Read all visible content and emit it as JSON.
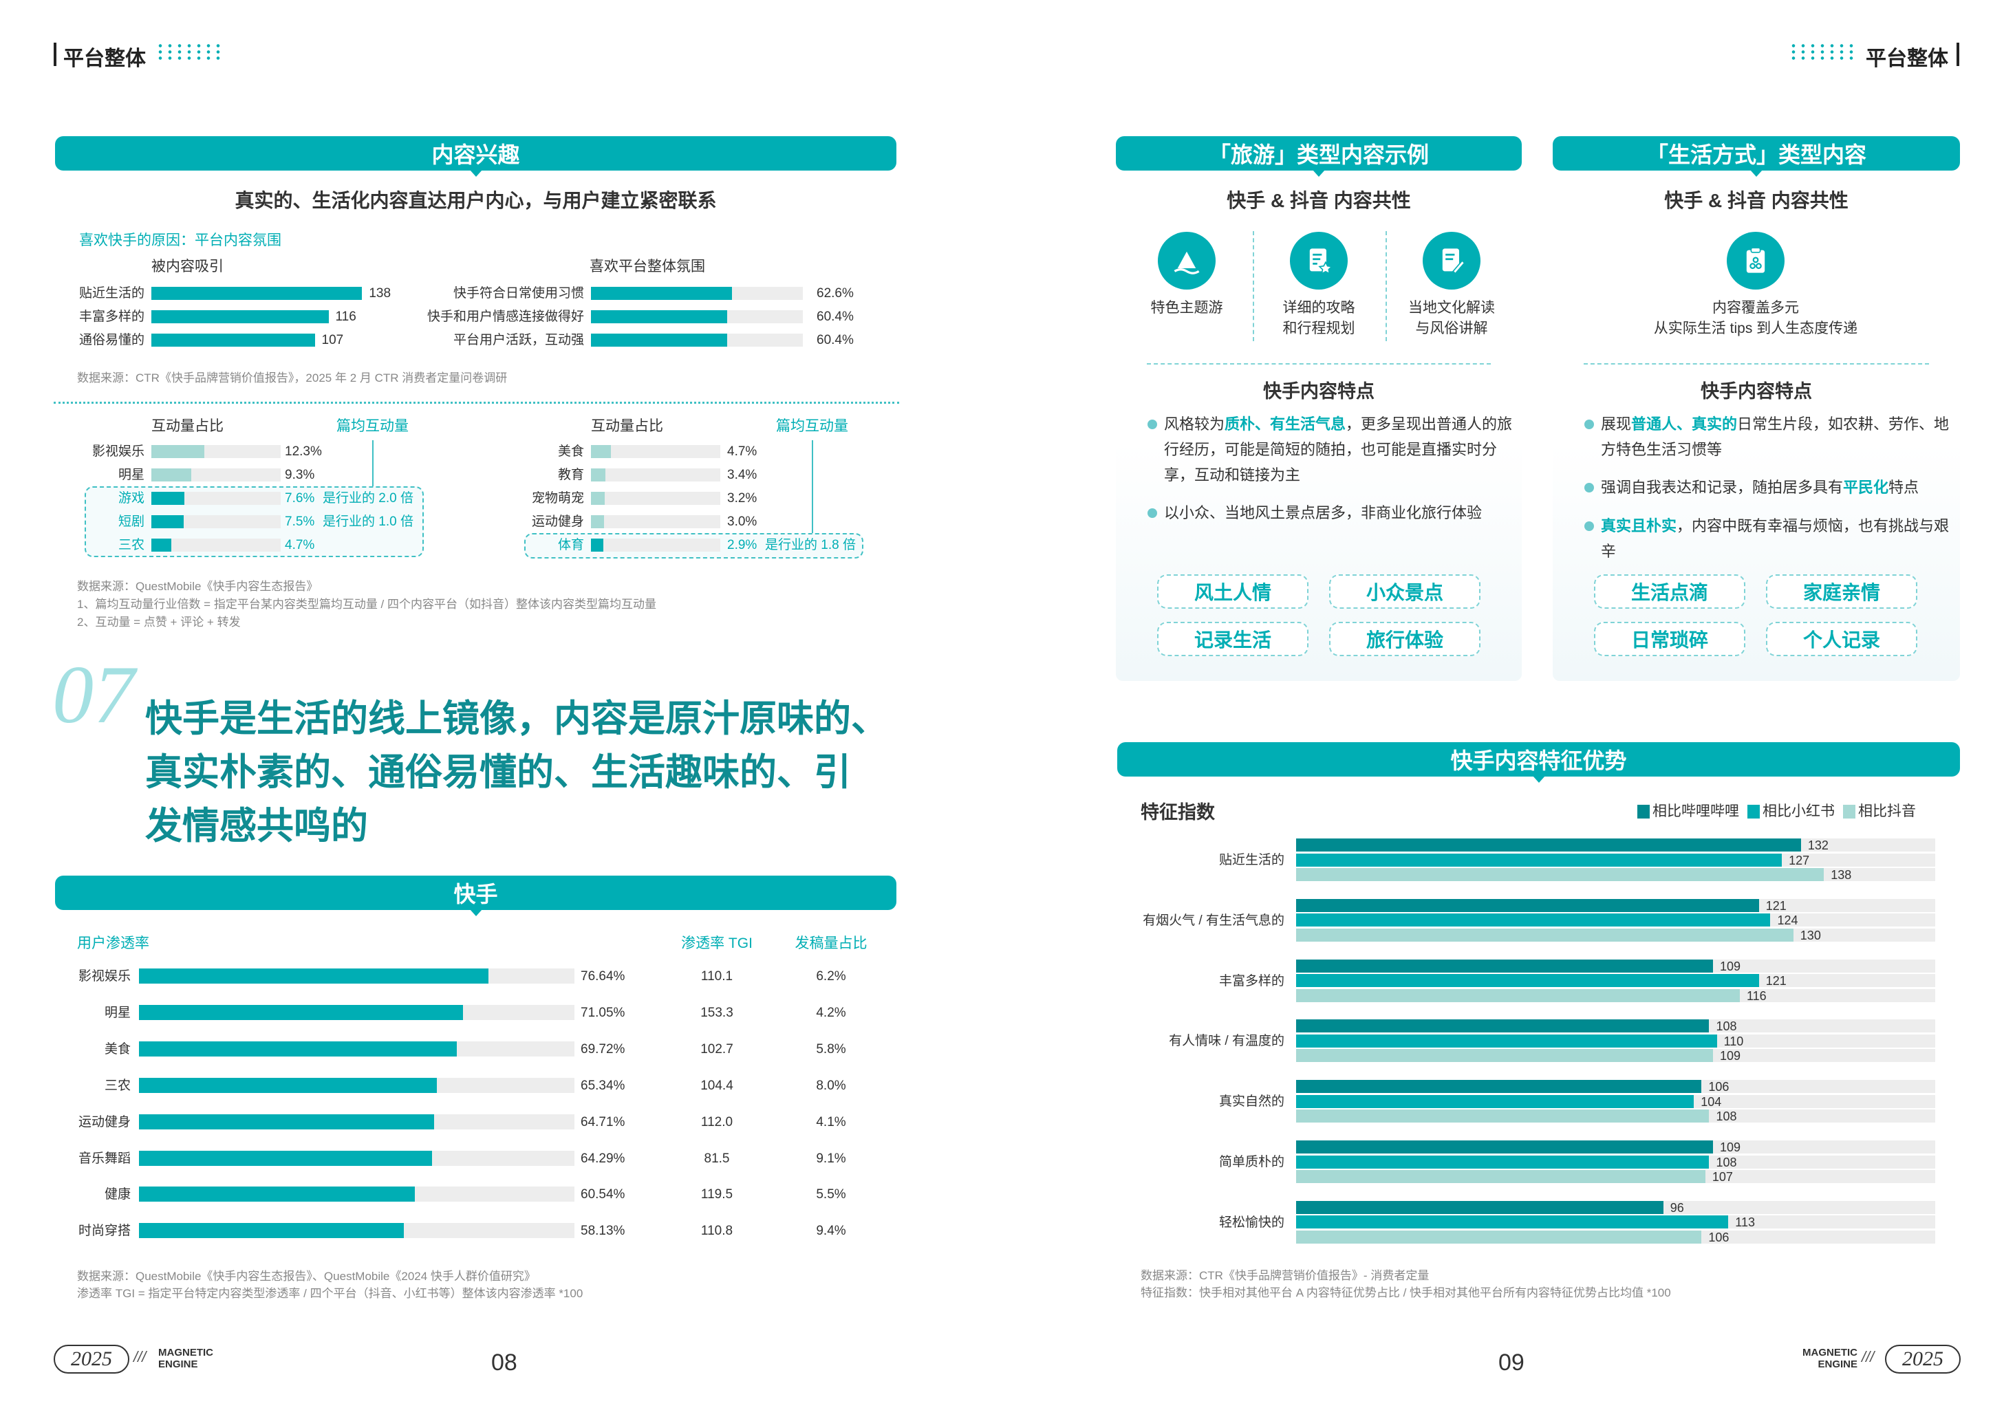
{
  "header": {
    "left": "平台整体",
    "right": "平台整体"
  },
  "left": {
    "banner1": "内容兴趣",
    "subtitle": "真实的、生活化内容直达用户内心，与用户建立紧密联系",
    "reason_title": "喜欢快手的原因：平台内容氛围",
    "attract": {
      "title": "被内容吸引",
      "items": [
        {
          "label": "贴近生活的",
          "value": 138
        },
        {
          "label": "丰富多样的",
          "value": 116
        },
        {
          "label": "通俗易懂的",
          "value": 107
        }
      ]
    },
    "atmosphere": {
      "title": "喜欢平台整体氛围",
      "items": [
        {
          "label": "快手符合日常使用习惯",
          "value": "62.6%",
          "pct": 62.6
        },
        {
          "label": "快手和用户情感连接做得好",
          "value": "60.4%",
          "pct": 60.4
        },
        {
          "label": "平台用户活跃，互动强",
          "value": "60.4%",
          "pct": 60.4
        }
      ]
    },
    "source1": "数据来源：CTR《快手品牌营销价值报告》，2025 年 2 月 CTR 消费者定量问卷调研",
    "interact_left": {
      "title": "互动量占比",
      "avg_title": "篇均互动量",
      "items": [
        {
          "label": "影视娱乐",
          "value": "12.3%",
          "pct": 12.3,
          "highlight": false,
          "multiple": ""
        },
        {
          "label": "明星",
          "value": "9.3%",
          "pct": 9.3,
          "highlight": false,
          "multiple": ""
        },
        {
          "label": "游戏",
          "value": "7.6%",
          "pct": 7.6,
          "highlight": true,
          "multiple": "是行业的 2.0 倍"
        },
        {
          "label": "短剧",
          "value": "7.5%",
          "pct": 7.5,
          "highlight": true,
          "multiple": "是行业的 1.0 倍"
        },
        {
          "label": "三农",
          "value": "4.7%",
          "pct": 4.7,
          "highlight": true,
          "multiple": ""
        }
      ]
    },
    "interact_right": {
      "title": "互动量占比",
      "avg_title": "篇均互动量",
      "items": [
        {
          "label": "美食",
          "value": "4.7%",
          "pct": 4.7,
          "highlight": false,
          "multiple": ""
        },
        {
          "label": "教育",
          "value": "3.4%",
          "pct": 3.4,
          "highlight": false,
          "multiple": ""
        },
        {
          "label": "宠物萌宠",
          "value": "3.2%",
          "pct": 3.2,
          "highlight": false,
          "multiple": ""
        },
        {
          "label": "运动健身",
          "value": "3.0%",
          "pct": 3.0,
          "highlight": false,
          "multiple": ""
        },
        {
          "label": "体育",
          "value": "2.9%",
          "pct": 2.9,
          "highlight": true,
          "multiple": "是行业的 1.8 倍"
        }
      ]
    },
    "source2": [
      "数据来源：QuestMobile《快手内容生态报告》",
      "1、篇均互动量行业倍数 = 指定平台某内容类型篇均互动量 / 四个内容平台（如抖音）整体该内容类型篇均互动量",
      "2、互动量 = 点赞 + 评论 + 转发"
    ],
    "section_no": "07",
    "headline": [
      "快手是生活的线上镜像，内容是原汁原味的、",
      "真实朴素的、通俗易懂的、生活趣味的、引",
      "发情感共鸣的"
    ],
    "banner2": "快手",
    "table": {
      "col1": "用户渗透率",
      "col2": "渗透率 TGI",
      "col3": "发稿量占比",
      "rows": [
        {
          "label": "影视娱乐",
          "pen": "76.64%",
          "pct": 76.64,
          "tgi": "110.1",
          "share": "6.2%"
        },
        {
          "label": "明星",
          "pen": "71.05%",
          "pct": 71.05,
          "tgi": "153.3",
          "share": "4.2%"
        },
        {
          "label": "美食",
          "pen": "69.72%",
          "pct": 69.72,
          "tgi": "102.7",
          "share": "5.8%"
        },
        {
          "label": "三农",
          "pen": "65.34%",
          "pct": 65.34,
          "tgi": "104.4",
          "share": "8.0%"
        },
        {
          "label": "运动健身",
          "pen": "64.71%",
          "pct": 64.71,
          "tgi": "112.0",
          "share": "4.1%"
        },
        {
          "label": "音乐舞蹈",
          "pen": "64.29%",
          "pct": 64.29,
          "tgi": "81.5",
          "share": "9.1%"
        },
        {
          "label": "健康",
          "pen": "60.54%",
          "pct": 60.54,
          "tgi": "119.5",
          "share": "5.5%"
        },
        {
          "label": "时尚穿搭",
          "pen": "58.13%",
          "pct": 58.13,
          "tgi": "110.8",
          "share": "9.4%"
        }
      ]
    },
    "source3": [
      "数据来源：QuestMobile《快手内容生态报告》、QuestMobile《2024 快手人群价值研究》",
      "渗透率 TGI = 指定平台特定内容类型渗透率 / 四个平台（抖音、小红书等）整体该内容渗透率 *100"
    ],
    "page": "08"
  },
  "right": {
    "travel": {
      "banner": "「旅游」类型内容示例",
      "subtitle": "快手 & 抖音 内容共性",
      "icons": [
        {
          "icon": "mountain-icon",
          "lines": [
            "特色主题游"
          ]
        },
        {
          "icon": "guide-star-icon",
          "lines": [
            "详细的攻略",
            "和行程规划"
          ]
        },
        {
          "icon": "note-pen-icon",
          "lines": [
            "当地文化解读",
            "与风俗讲解"
          ]
        }
      ],
      "feature_title": "快手内容特点",
      "bullets": [
        [
          {
            "t": "风格较为"
          },
          {
            "t": "质朴、有生活气息",
            "hl": true
          },
          {
            "t": "，更多呈现出普通人的旅行经历，可能是简短的随拍，也可能是直播实时分享，互动和链接为主"
          }
        ],
        [
          {
            "t": "以小众、当地风土景点居多，非商业化旅行体验"
          }
        ]
      ],
      "tags": [
        "风土人情",
        "小众景点",
        "记录生活",
        "旅行体验"
      ]
    },
    "life": {
      "banner": "「生活方式」类型内容",
      "subtitle": "快手 & 抖音 内容共性",
      "icons": [
        {
          "icon": "clipboard-icon",
          "lines": [
            "内容覆盖多元",
            "从实际生活 tips 到人生态度传递"
          ]
        }
      ],
      "feature_title": "快手内容特点",
      "bullets": [
        [
          {
            "t": "展现"
          },
          {
            "t": "普通人、真实的",
            "hl": true
          },
          {
            "t": "日常生片段，如农耕、劳作、地方特色生活习惯等"
          }
        ],
        [
          {
            "t": "强调自我表达和记录，随拍居多具有"
          },
          {
            "t": "平民化",
            "hl": true
          },
          {
            "t": "特点"
          }
        ],
        [
          {
            "t": "真实且朴实",
            "hl": true
          },
          {
            "t": "，内容中既有幸福与烦恼，也有挑战与艰辛"
          }
        ]
      ],
      "tags": [
        "生活点滴",
        "家庭亲情",
        "日常琐碎",
        "个人记录"
      ]
    },
    "banner3": "快手内容特征优势",
    "source": [
      "数据来源：CTR《快手品牌营销价值报告》- 消费者定量",
      "特征指数：快手相对其他平台 A 内容特征优势占比 / 快手相对其他平台所有内容特征优势占比均值 *100"
    ],
    "page": "09"
  },
  "chart_data": {
    "type": "bar",
    "orientation": "horizontal",
    "title": "特征指数",
    "legend_position": "top-right",
    "categories": [
      "贴近生活的",
      "有烟火气 / 有生活气息的",
      "丰富多样的",
      "有人情味 / 有温度的",
      "真实自然的",
      "简单质朴的",
      "轻松愉快的"
    ],
    "series": [
      {
        "name": "相比哔哩哔哩",
        "color": "#008A90",
        "values": [
          132,
          121,
          109,
          108,
          106,
          109,
          96
        ]
      },
      {
        "name": "相比小红书",
        "color": "#00AEB4",
        "values": [
          127,
          124,
          121,
          110,
          104,
          108,
          113
        ]
      },
      {
        "name": "相比抖音",
        "color": "#A6D9D4",
        "values": [
          138,
          130,
          116,
          109,
          108,
          107,
          106
        ]
      }
    ]
  },
  "footer": {
    "year": "2025",
    "brand_line1": "MAGNETIC",
    "brand_line2": "ENGINE"
  },
  "colors": {
    "teal": "#00AEB4",
    "dark_teal": "#008A90",
    "light_teal": "#A6D9D4",
    "track": "#EDEDED"
  }
}
